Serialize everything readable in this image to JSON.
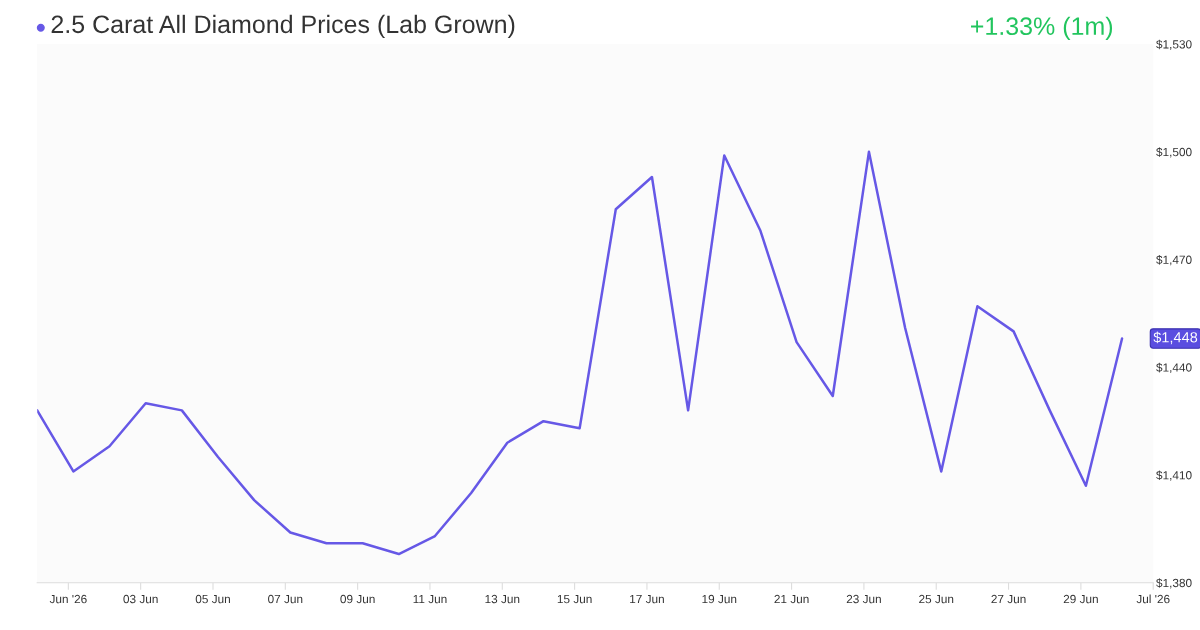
{
  "chart_data": {
    "type": "line",
    "title": "2.5 Carat All Diamond Prices (Lab Grown)",
    "x": [
      "2026-05-31T03:20",
      "2026-06-01T03:20",
      "2026-06-02T03:20",
      "2026-06-03T03:20",
      "2026-06-04T03:20",
      "2026-06-05T03:20",
      "2026-06-06T03:20",
      "2026-06-07T03:20",
      "2026-06-08T03:20",
      "2026-06-09T03:20",
      "2026-06-10T03:20",
      "2026-06-11T03:20",
      "2026-06-12T03:20",
      "2026-06-13T03:20",
      "2026-06-14T03:20",
      "2026-06-15T03:20",
      "2026-06-16T03:20",
      "2026-06-17T03:20",
      "2026-06-18T03:20",
      "2026-06-19T03:20",
      "2026-06-20T03:20",
      "2026-06-21T03:20",
      "2026-06-22T03:20",
      "2026-06-23T03:20",
      "2026-06-24T03:20",
      "2026-06-25T03:20",
      "2026-06-26T03:20",
      "2026-06-27T03:20",
      "2026-06-28T03:20",
      "2026-06-29T03:20",
      "2026-06-30T03:20"
    ],
    "series": [
      {
        "color": "#6658e6",
        "values": [
          1428,
          1411,
          1418,
          1430,
          1428,
          1415,
          1403,
          1394,
          1391,
          1391,
          1388,
          1393,
          1405,
          1419,
          1425,
          1423,
          1484,
          1493,
          1428,
          1499,
          1478,
          1447,
          1432,
          1500,
          1451,
          1411,
          1457,
          1450,
          1428,
          1407,
          1448
        ]
      }
    ],
    "ylim": [
      1380,
      1530
    ],
    "yticks": [
      {
        "value": 1380,
        "label": "$1,380"
      },
      {
        "value": 1410,
        "label": "$1,410"
      },
      {
        "value": 1440,
        "label": "$1,440"
      },
      {
        "value": 1470,
        "label": "$1,470"
      },
      {
        "value": 1500,
        "label": "$1,500"
      },
      {
        "value": 1530,
        "label": "$1,530"
      }
    ],
    "xlim": [
      "2026-05-31T03:20",
      "2026-07-01"
    ],
    "xticks": [
      {
        "value": "2026-06-01",
        "label": "Jun '26"
      },
      {
        "value": "2026-06-03",
        "label": "03 Jun"
      },
      {
        "value": "2026-06-05",
        "label": "05 Jun"
      },
      {
        "value": "2026-06-07",
        "label": "07 Jun"
      },
      {
        "value": "2026-06-09",
        "label": "09 Jun"
      },
      {
        "value": "2026-06-11",
        "label": "11 Jun"
      },
      {
        "value": "2026-06-13",
        "label": "13 Jun"
      },
      {
        "value": "2026-06-15",
        "label": "15 Jun"
      },
      {
        "value": "2026-06-17",
        "label": "17 Jun"
      },
      {
        "value": "2026-06-19",
        "label": "19 Jun"
      },
      {
        "value": "2026-06-21",
        "label": "21 Jun"
      },
      {
        "value": "2026-06-23",
        "label": "23 Jun"
      },
      {
        "value": "2026-06-25",
        "label": "25 Jun"
      },
      {
        "value": "2026-06-27",
        "label": "27 Jun"
      },
      {
        "value": "2026-06-29",
        "label": "29 Jun"
      },
      {
        "value": "2026-07-01",
        "label": "Jul '26"
      }
    ],
    "grid": false,
    "annotations": [
      "+1.33% (1m)",
      {
        "text": "$1,448",
        "x": "2026-06-30T03:20",
        "y": 1448
      }
    ]
  }
}
